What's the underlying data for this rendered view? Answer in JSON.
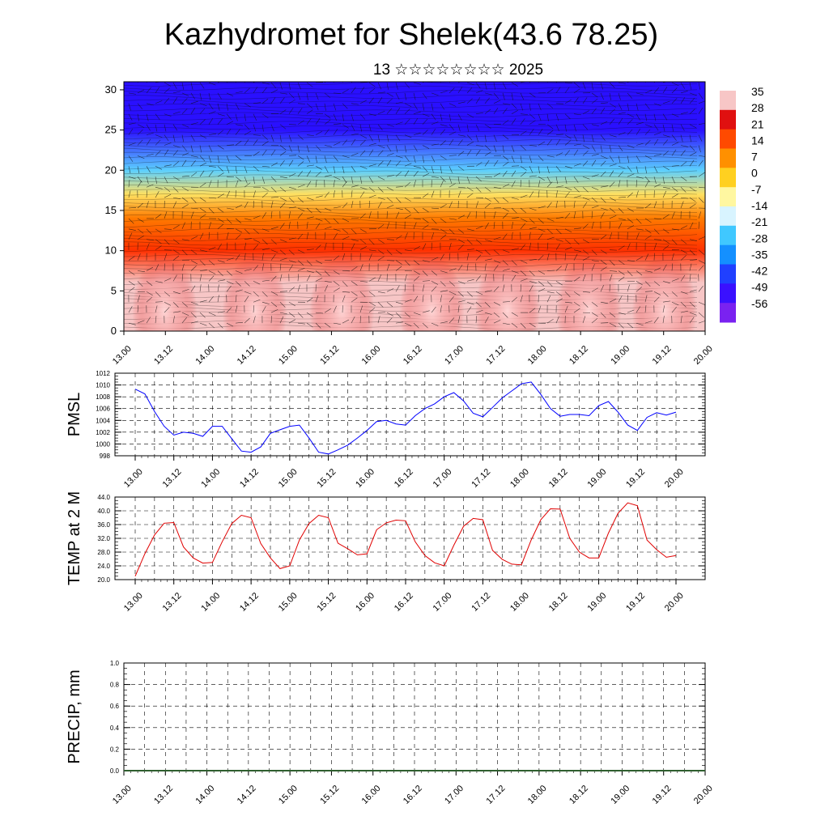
{
  "title": "Kazhydromet for Shelek(43.6 78.25)",
  "subtitle": "13 ☆☆☆☆☆☆☆☆ 2025",
  "x_tick_labels": [
    "13.00",
    "13.12",
    "14.00",
    "14.12",
    "15.00",
    "15.12",
    "16.00",
    "16.12",
    "17.00",
    "17.12",
    "18.00",
    "18.12",
    "19.00",
    "19.12",
    "20.00"
  ],
  "colors": {
    "pmsl_line": "#0000ff",
    "temp_line": "#e00000",
    "precip_line": "#2f5f2f",
    "wind_barbs": "#111111"
  },
  "chart_data": [
    {
      "type": "heatmap",
      "name": "vertical-cross-section",
      "description_field": "temperature",
      "y_ticks": [
        "0",
        "5",
        "10",
        "15",
        "20",
        "25",
        "30"
      ],
      "ylim": [
        0,
        31
      ],
      "x_ticks": [
        "13.00",
        "13.12",
        "14.00",
        "14.12",
        "15.00",
        "15.12",
        "16.00",
        "16.12",
        "17.00",
        "17.12",
        "18.00",
        "18.12",
        "19.00",
        "19.12",
        "20.00"
      ],
      "colorbar_labels": [
        "35",
        "28",
        "21",
        "14",
        "7",
        "0",
        "-7",
        "-14",
        "-21",
        "-28",
        "-35",
        "-42",
        "-49",
        "-56"
      ],
      "colorbar_colors": [
        "#f7c6c6",
        "#e01010",
        "#ff4a00",
        "#ff9000",
        "#ffd020",
        "#fff7a0",
        "#d8f4ff",
        "#40c8ff",
        "#1490ff",
        "#2040ff",
        "#3a10ff",
        "#7a22f0"
      ],
      "levels_profile": [
        {
          "z": 0,
          "value": 33
        },
        {
          "z": 6,
          "value": 30
        },
        {
          "z": 10,
          "value": 20
        },
        {
          "z": 14,
          "value": 6
        },
        {
          "z": 17,
          "value": -8
        },
        {
          "z": 20,
          "value": -28
        },
        {
          "z": 25,
          "value": -56
        },
        {
          "z": 31,
          "value": -60
        }
      ]
    },
    {
      "type": "line",
      "name": "pmsl",
      "ylabel": "PMSL",
      "ylim": [
        998,
        1012
      ],
      "y_ticks": [
        "998",
        "1000",
        "1002",
        "1004",
        "1006",
        "1008",
        "1010",
        "1012"
      ],
      "x_ticks": [
        "13.00",
        "13.12",
        "14.00",
        "14.12",
        "15.00",
        "15.12",
        "16.00",
        "16.12",
        "17.00",
        "17.12",
        "18.00",
        "18.12",
        "19.00",
        "19.12",
        "20.00"
      ],
      "x_hours": [
        0,
        3,
        6,
        9,
        12,
        15,
        18,
        21,
        24,
        27,
        30,
        33,
        36,
        39,
        42,
        45,
        48,
        51,
        54,
        57,
        60,
        63,
        66,
        69,
        72,
        75,
        78,
        81,
        84,
        87,
        90,
        93,
        96,
        99,
        102,
        105,
        108,
        111,
        114,
        117,
        120,
        123,
        126,
        129,
        132,
        135,
        138,
        141,
        144,
        147,
        150,
        153,
        156,
        159,
        162,
        165,
        168
      ],
      "values": [
        1009.3,
        1008.5,
        1005.5,
        1003.0,
        1001.5,
        1002.0,
        1001.8,
        1001.3,
        1003.0,
        1003.0,
        1000.9,
        998.8,
        998.6,
        999.5,
        1001.8,
        1002.4,
        1003.0,
        1003.2,
        1001.0,
        998.6,
        998.3,
        999.0,
        999.8,
        1001.0,
        1002.3,
        1003.8,
        1004.0,
        1003.4,
        1003.2,
        1004.8,
        1006.0,
        1006.8,
        1008.0,
        1008.7,
        1007.3,
        1005.2,
        1004.6,
        1006.2,
        1007.8,
        1009.0,
        1010.2,
        1010.5,
        1008.4,
        1006.0,
        1004.7,
        1005.0,
        1005.0,
        1004.8,
        1006.5,
        1007.2,
        1005.4,
        1003.2,
        1002.3,
        1004.5,
        1005.3,
        1004.9,
        1005.4
      ]
    },
    {
      "type": "line",
      "name": "temp-2m",
      "ylabel": "TEMP at 2 M",
      "ylim": [
        20.0,
        44.0
      ],
      "y_ticks": [
        "20.0",
        "24.0",
        "28.0",
        "32.0",
        "36.0",
        "40.0",
        "44.0"
      ],
      "x_ticks": [
        "13.00",
        "13.12",
        "14.00",
        "14.12",
        "15.00",
        "15.12",
        "16.00",
        "16.12",
        "17.00",
        "17.12",
        "18.00",
        "18.12",
        "19.00",
        "19.12",
        "20.00"
      ],
      "x_hours": [
        0,
        3,
        6,
        9,
        12,
        15,
        18,
        21,
        24,
        27,
        30,
        33,
        36,
        39,
        42,
        45,
        48,
        51,
        54,
        57,
        60,
        63,
        66,
        69,
        72,
        75,
        78,
        81,
        84,
        87,
        90,
        93,
        96,
        99,
        102,
        105,
        108,
        111,
        114,
        117,
        120,
        123,
        126,
        129,
        132,
        135,
        138,
        141,
        144,
        147,
        150,
        153,
        156,
        159,
        162,
        165,
        168
      ],
      "values": [
        21.0,
        27.5,
        33.0,
        36.4,
        36.6,
        29.5,
        26.3,
        24.8,
        25.0,
        31.0,
        36.3,
        38.7,
        38.0,
        30.5,
        26.3,
        23.2,
        24.0,
        31.5,
        36.3,
        38.7,
        38.0,
        30.6,
        29.0,
        27.2,
        27.5,
        34.5,
        36.5,
        37.3,
        37.1,
        31.0,
        27.0,
        24.9,
        24.0,
        30.0,
        35.5,
        37.8,
        37.4,
        28.5,
        25.9,
        24.5,
        24.3,
        31.5,
        37.4,
        40.6,
        40.5,
        32.0,
        28.0,
        26.3,
        26.3,
        33.5,
        39.3,
        42.3,
        41.5,
        31.5,
        28.7,
        26.5,
        27.0
      ]
    },
    {
      "type": "line",
      "name": "precip",
      "ylabel": "PRECIP, mm",
      "ylim": [
        0.0,
        1.0
      ],
      "y_ticks": [
        "0.0",
        "0.2",
        "0.4",
        "0.6",
        "0.8",
        "1.0"
      ],
      "x_ticks": [
        "13.00",
        "13.12",
        "14.00",
        "14.12",
        "15.00",
        "15.12",
        "16.00",
        "16.12",
        "17.00",
        "17.12",
        "18.00",
        "18.12",
        "19.00",
        "19.12",
        "20.00"
      ],
      "values": [
        0,
        0,
        0,
        0,
        0,
        0,
        0,
        0,
        0,
        0,
        0,
        0,
        0,
        0,
        0
      ]
    }
  ]
}
